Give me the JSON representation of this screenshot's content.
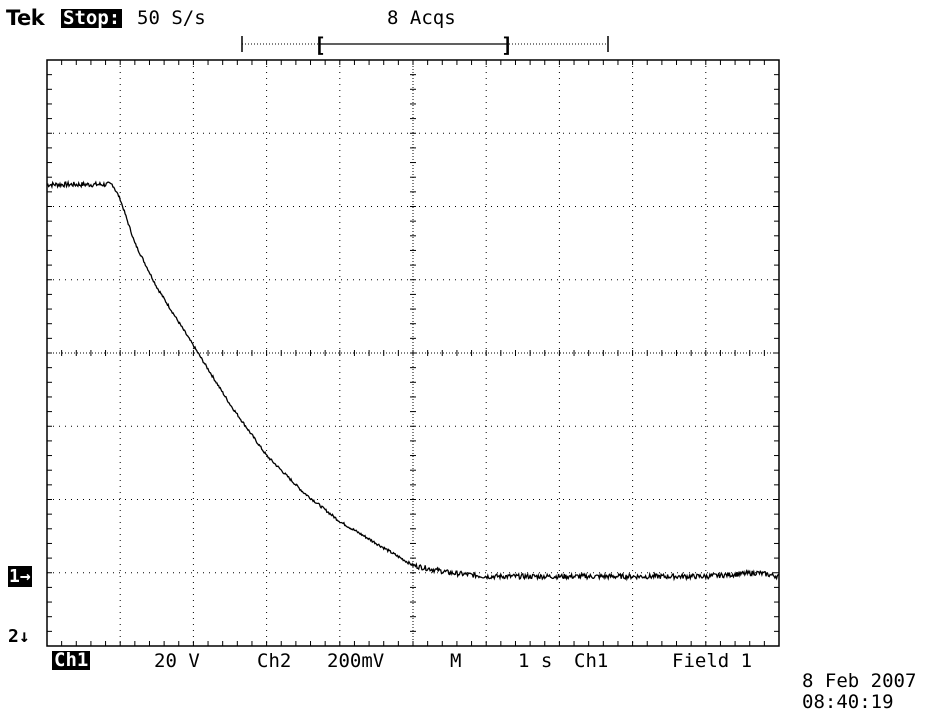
{
  "header": {
    "brand": "Tek",
    "run_state": "Stop:",
    "sample_rate": "50 S/s",
    "acquisitions": "8 Acqs",
    "record_bracket_left": "[",
    "record_bracket_right": "]"
  },
  "markers": {
    "ch1": "1→",
    "ch2": "2↓"
  },
  "readout": {
    "ch1_label": "Ch1",
    "ch1_scale": "20 V",
    "ch2_label": "Ch2",
    "ch2_scale": "200mV",
    "main_label": "M",
    "timebase": "1 s",
    "trigger_source": "Ch1",
    "trigger_mode": "Field 1"
  },
  "timestamp": {
    "date": "8 Feb 2007",
    "time": "08:40:19"
  },
  "chart_data": {
    "type": "line",
    "grid": true,
    "divisions": {
      "x": 10,
      "y": 8
    },
    "x_unit_per_div": "1 s",
    "y_unit_per_div": "20 V",
    "xlim_div": [
      0,
      10
    ],
    "ylim_div": [
      -4,
      4
    ],
    "series": [
      {
        "channel": "Ch1",
        "x_div": [
          0,
          0.5,
          0.9,
          1.0,
          1.2,
          1.5,
          2.0,
          2.5,
          3.0,
          3.5,
          4.0,
          4.5,
          5.0,
          5.5,
          6,
          7,
          8,
          9,
          9.7,
          10
        ],
        "y_div": [
          2.3,
          2.3,
          2.3,
          2.1,
          1.5,
          0.9,
          0.1,
          -0.7,
          -1.4,
          -1.9,
          -2.3,
          -2.6,
          -2.9,
          -3.0,
          -3.05,
          -3.05,
          -3.05,
          -3.05,
          -3.0,
          -3.05
        ]
      }
    ],
    "ground_level_div": -3.0
  }
}
